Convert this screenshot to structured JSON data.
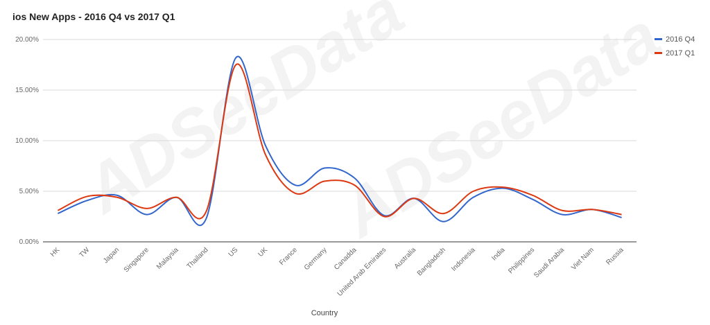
{
  "chart_data": {
    "type": "line",
    "title": "ios New Apps - 2016 Q4 vs 2017 Q1",
    "xlabel": "Country",
    "ylabel": "",
    "ylim": [
      0,
      20
    ],
    "yticks": [
      0,
      5,
      10,
      15,
      20
    ],
    "ytick_labels": [
      "0.00%",
      "5.00%",
      "10.00%",
      "15.00%",
      "20.00%"
    ],
    "grid": true,
    "legend_position": "top-right",
    "categories": [
      "HK",
      "TW",
      "Japan",
      "Singapore",
      "Malaysia",
      "Thailand",
      "US",
      "UK",
      "France",
      "Germany",
      "Canadda",
      "United Arab Emirates",
      "Australia",
      "Bangladesh",
      "Indonesia",
      "India",
      "Philippines",
      "Saudi Arabia",
      "Viet Nam",
      "Russia"
    ],
    "series": [
      {
        "name": "2016 Q4",
        "color": "#3366cc",
        "values": [
          2.8,
          4.1,
          4.6,
          2.7,
          4.4,
          2.3,
          18.2,
          9.5,
          5.6,
          7.3,
          6.3,
          2.6,
          4.3,
          2.0,
          4.4,
          5.3,
          4.2,
          2.7,
          3.2,
          2.4
        ]
      },
      {
        "name": "2017 Q1",
        "color": "#dc3912",
        "values": [
          3.1,
          4.5,
          4.4,
          3.3,
          4.4,
          3.0,
          17.5,
          8.6,
          4.8,
          6.0,
          5.6,
          2.5,
          4.3,
          2.8,
          5.0,
          5.4,
          4.6,
          3.1,
          3.2,
          2.7
        ]
      }
    ]
  },
  "watermark": "ADSeeData"
}
